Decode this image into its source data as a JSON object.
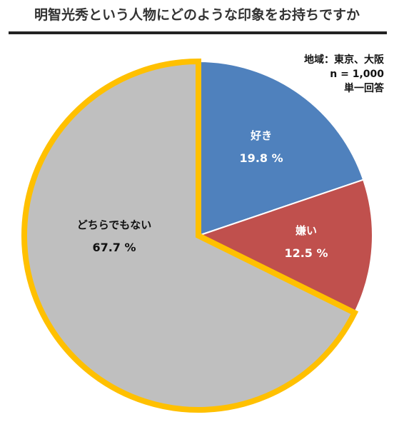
{
  "chart_data": {
    "type": "pie",
    "title": "明智光秀という人物にどのような印象をお持ちですか",
    "notes": [
      "地域：東京、大阪",
      "n = 1,000",
      "単一回答"
    ],
    "slices": [
      {
        "label": "好き",
        "value": 19.8,
        "value_label": "19.8 %",
        "color": "#4F81BD",
        "text_color": "#ffffff"
      },
      {
        "label": "嫌い",
        "value": 12.5,
        "value_label": "12.5 %",
        "color": "#C0504D",
        "text_color": "#ffffff"
      },
      {
        "label": "どちらでもない",
        "value": 67.7,
        "value_label": "67.7 %",
        "color": "#BFBFBF",
        "text_color": "#111111"
      }
    ],
    "highlight": {
      "slice": "どちらでもない",
      "outline_color": "#FFC000"
    }
  }
}
